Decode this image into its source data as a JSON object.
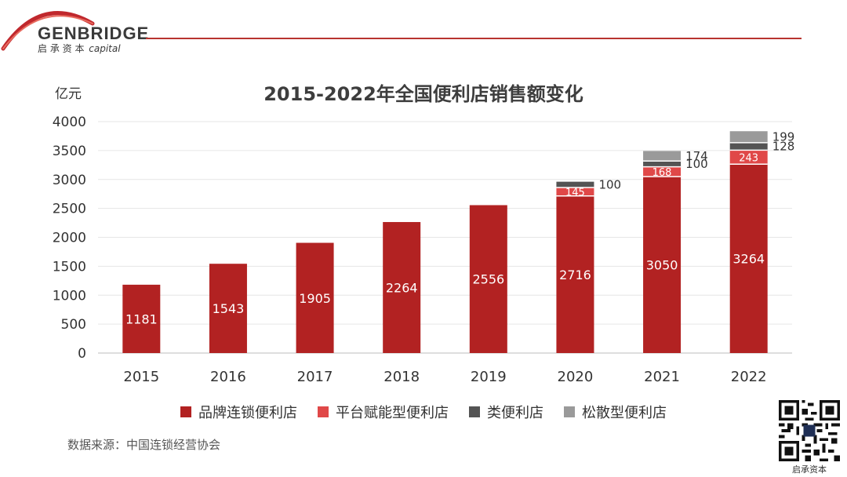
{
  "brand": {
    "name": "GENBRIDGE",
    "sub_cn": "启 承 资 本",
    "sub_en": "capital",
    "qr_caption": "启承资本"
  },
  "colors": {
    "brand_red": "#b8342f",
    "series": [
      "#b22222",
      "#e04848",
      "#545454",
      "#9a9a9a"
    ]
  },
  "chart_data": {
    "type": "bar",
    "stacked": true,
    "title": "2015-2022年全国便利店销售额变化",
    "ylabel": "亿元",
    "ylim": [
      0,
      4000
    ],
    "yticks": [
      0,
      500,
      1000,
      1500,
      2000,
      2500,
      3000,
      3500,
      4000
    ],
    "grid": true,
    "legend_position": "bottom",
    "categories": [
      "2015",
      "2016",
      "2017",
      "2018",
      "2019",
      "2020",
      "2021",
      "2022"
    ],
    "series": [
      {
        "name": "品牌连锁便利店",
        "values": [
          1181,
          1543,
          1905,
          2264,
          2556,
          2716,
          3050,
          3264
        ]
      },
      {
        "name": "平台赋能型便利店",
        "values": [
          null,
          null,
          null,
          null,
          null,
          145,
          168,
          243
        ]
      },
      {
        "name": "类便利店",
        "values": [
          null,
          null,
          null,
          null,
          null,
          100,
          100,
          128
        ]
      },
      {
        "name": "松散型便利店",
        "values": [
          null,
          null,
          null,
          null,
          null,
          null,
          174,
          199
        ]
      }
    ]
  },
  "source": "数据来源：中国连锁经营协会"
}
